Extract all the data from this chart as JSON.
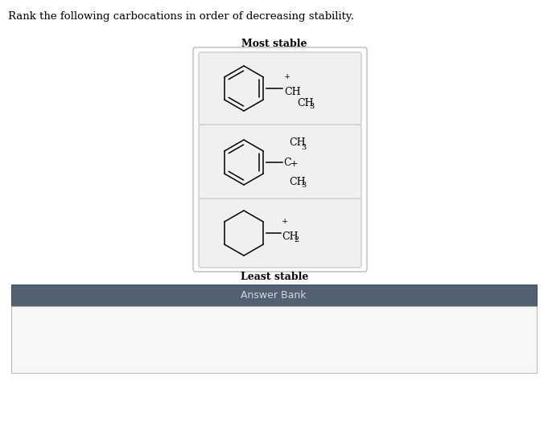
{
  "title_text": "Rank the following carbocations in order of decreasing stability.",
  "most_stable_label": "Most stable",
  "least_stable_label": "Least stable",
  "answer_bank_label": "Answer Bank",
  "answer_bank_header_color": "#536070",
  "answer_bank_bg_color": "#f7f7f7",
  "answer_bank_text_color": "#d0d8e0",
  "background_color": "#ffffff",
  "outer_edge_color": "#bbbbbb",
  "inner_box_color": "#f0f0f0",
  "inner_edge_color": "#bbbbbb"
}
